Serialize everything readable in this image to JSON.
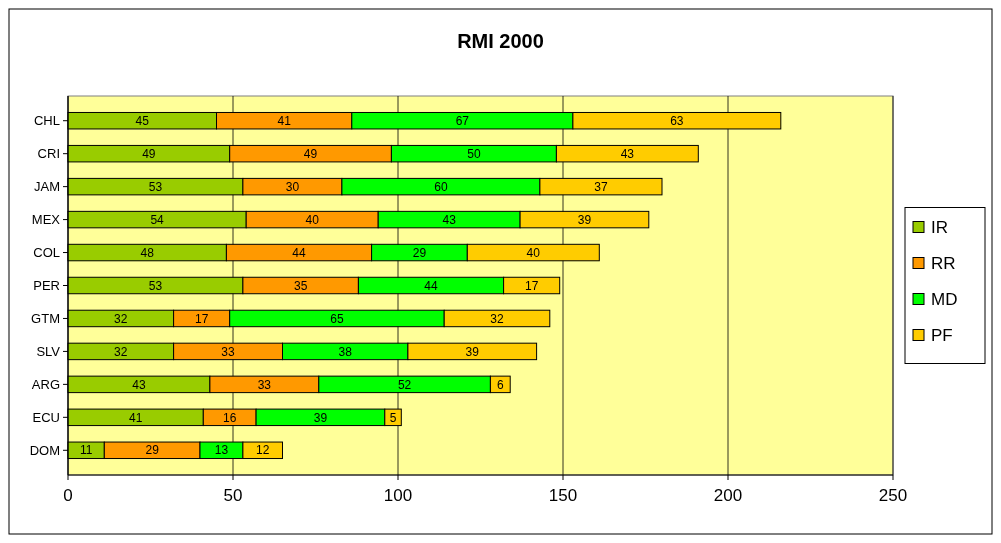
{
  "chart_data": {
    "type": "bar",
    "title": "RMI 2000",
    "orientation": "horizontal",
    "stacked": true,
    "categories": [
      "CHL",
      "CRI",
      "JAM",
      "MEX",
      "COL",
      "PER",
      "GTM",
      "SLV",
      "ARG",
      "ECU",
      "DOM"
    ],
    "series": [
      {
        "name": "IR",
        "color": "#99cc00",
        "values": [
          45,
          49,
          53,
          54,
          48,
          53,
          32,
          32,
          43,
          41,
          11
        ]
      },
      {
        "name": "RR",
        "color": "#ff9900",
        "values": [
          41,
          49,
          30,
          40,
          44,
          35,
          17,
          33,
          33,
          16,
          29
        ]
      },
      {
        "name": "MD",
        "color": "#00ff00",
        "values": [
          67,
          50,
          60,
          43,
          29,
          44,
          65,
          38,
          52,
          39,
          13
        ]
      },
      {
        "name": "PF",
        "color": "#ffcc00",
        "values": [
          63,
          43,
          37,
          39,
          40,
          17,
          32,
          39,
          6,
          5,
          12
        ]
      }
    ],
    "xlim": [
      0,
      250
    ],
    "xticks": [
      0,
      50,
      100,
      150,
      200,
      250
    ],
    "grid": "x",
    "legend": "right",
    "data_labels": true
  }
}
